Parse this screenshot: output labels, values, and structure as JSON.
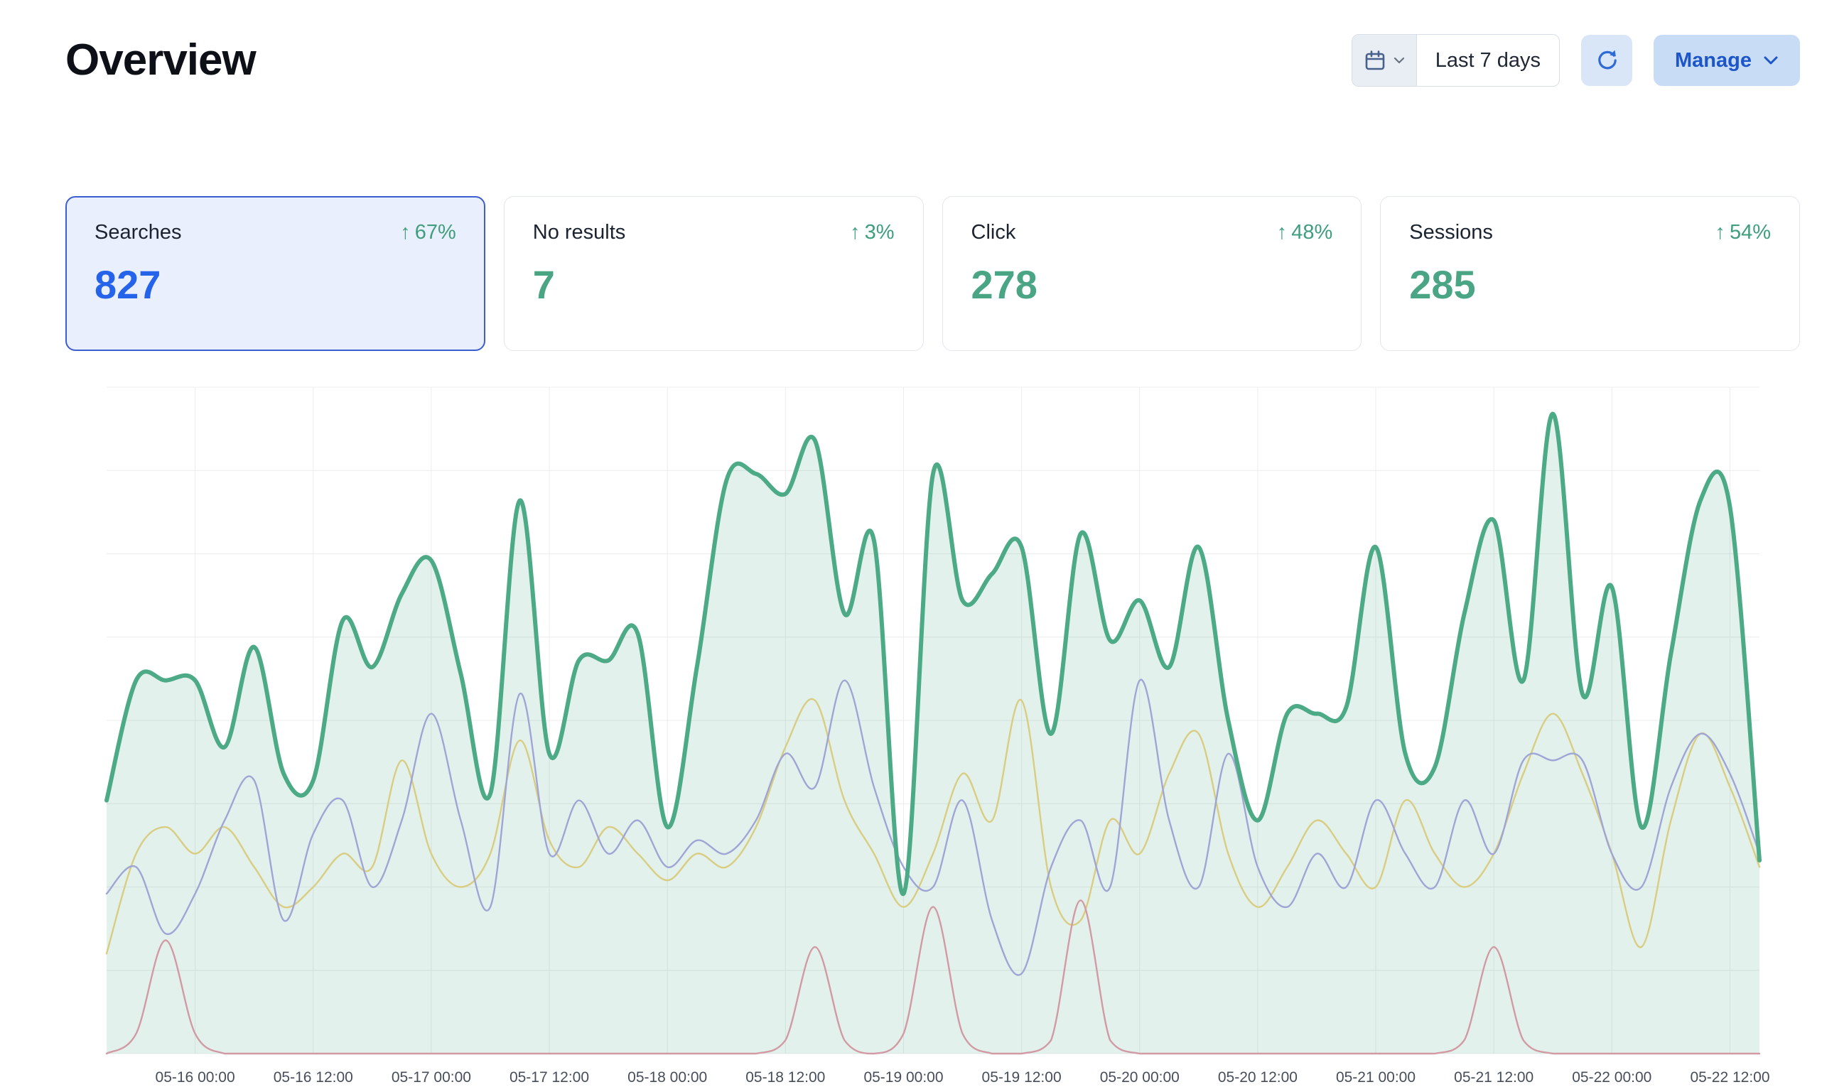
{
  "page": {
    "title": "Overview"
  },
  "toolbar": {
    "date_range": {
      "label": "Last 7 days"
    },
    "manage": {
      "label": "Manage"
    }
  },
  "icons": {
    "trend_up": "↑"
  },
  "stat_cards": [
    {
      "id": "searches",
      "label": "Searches",
      "delta": "67%",
      "value": "827",
      "selected": true
    },
    {
      "id": "no-results",
      "label": "No results",
      "delta": "3%",
      "value": "7",
      "selected": false
    },
    {
      "id": "click",
      "label": "Click",
      "delta": "48%",
      "value": "278",
      "selected": false
    },
    {
      "id": "sessions",
      "label": "Sessions",
      "delta": "54%",
      "value": "285",
      "selected": false
    }
  ],
  "chart_data": {
    "type": "area",
    "ylim": [
      0,
      100
    ],
    "grid": true,
    "legend": "none",
    "tick_start_index": 3,
    "tick_every": 4,
    "x_tick_labels": [
      "05-16 00:00",
      "05-16 12:00",
      "05-17 00:00",
      "05-17 12:00",
      "05-18 00:00",
      "05-18 12:00",
      "05-19 00:00",
      "05-19 12:00",
      "05-20 00:00",
      "05-20 12:00",
      "05-21 00:00",
      "05-21 12:00",
      "05-22 00:00",
      "05-22 12:00"
    ],
    "series": [
      {
        "name": "Searches",
        "color": "#4caa86",
        "stroke_width": 6,
        "fill": "rgba(76,170,134,0.16)",
        "values": [
          38,
          56,
          56,
          56,
          46,
          61,
          42,
          41,
          65,
          58,
          69,
          74,
          57,
          39,
          83,
          45,
          59,
          59,
          63,
          34,
          58,
          86,
          87,
          84,
          92,
          66,
          77,
          24,
          87,
          68,
          72,
          76,
          48,
          78,
          62,
          68,
          58,
          76,
          50,
          35,
          51,
          51,
          52,
          76,
          45,
          43,
          66,
          80,
          56,
          96,
          54,
          70,
          34,
          60,
          83,
          82,
          29
        ]
      },
      {
        "name": "Sessions",
        "color": "#a0a5d6",
        "stroke_width": 2.4,
        "fill": null,
        "values": [
          24,
          28,
          18,
          24,
          35,
          41,
          20,
          33,
          38,
          25,
          35,
          51,
          35,
          22,
          54,
          30,
          38,
          30,
          35,
          28,
          32,
          30,
          35,
          45,
          40,
          56,
          40,
          28,
          25,
          38,
          20,
          12,
          28,
          35,
          25,
          56,
          35,
          25,
          45,
          28,
          22,
          30,
          25,
          38,
          30,
          25,
          38,
          30,
          44,
          44,
          44,
          30,
          25,
          40,
          48,
          42,
          30
        ]
      },
      {
        "name": "Click",
        "color": "#d9cd82",
        "stroke_width": 2.4,
        "fill": null,
        "values": [
          15,
          30,
          34,
          30,
          34,
          28,
          22,
          25,
          30,
          28,
          44,
          30,
          25,
          30,
          47,
          32,
          28,
          34,
          30,
          26,
          30,
          28,
          34,
          46,
          53,
          38,
          30,
          22,
          30,
          42,
          35,
          53,
          25,
          20,
          35,
          30,
          42,
          48,
          30,
          22,
          28,
          35,
          30,
          25,
          38,
          30,
          25,
          30,
          42,
          51,
          42,
          30,
          16,
          35,
          48,
          40,
          28
        ]
      },
      {
        "name": "No results",
        "color": "#d29aa4",
        "stroke_width": 2.4,
        "fill": null,
        "values": [
          0,
          3,
          17,
          3,
          0,
          0,
          0,
          0,
          0,
          0,
          0,
          0,
          0,
          0,
          0,
          0,
          0,
          0,
          0,
          0,
          0,
          0,
          0,
          2,
          16,
          2,
          0,
          3,
          22,
          3,
          0,
          0,
          2,
          23,
          2,
          0,
          0,
          0,
          0,
          0,
          0,
          0,
          0,
          0,
          0,
          0,
          2,
          16,
          2,
          0,
          0,
          0,
          0,
          0,
          0,
          0,
          0
        ]
      }
    ]
  }
}
